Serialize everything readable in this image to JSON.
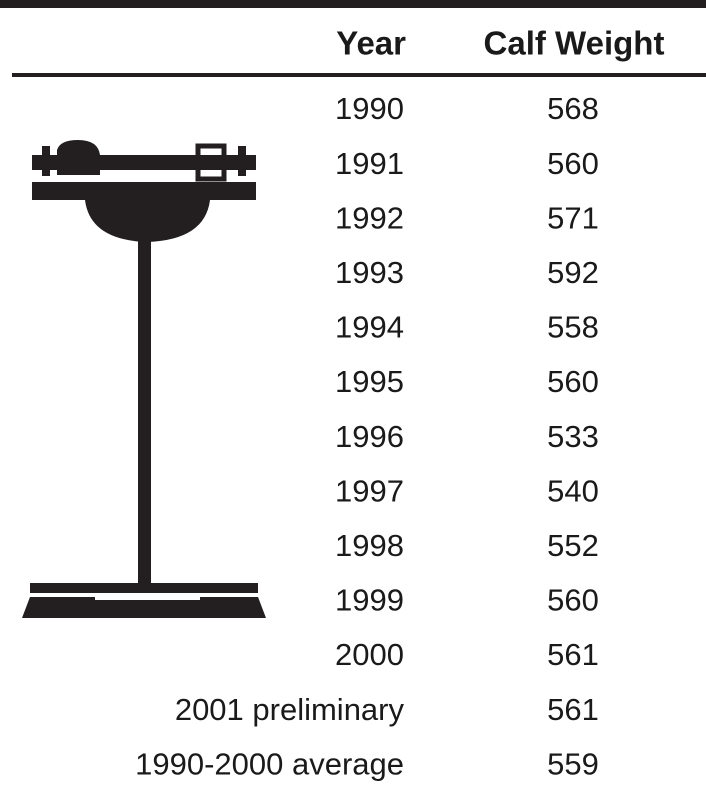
{
  "table": {
    "header": [
      "Year",
      "Calf Weight"
    ],
    "rows": [
      [
        "1990",
        568
      ],
      [
        "1991",
        560
      ],
      [
        "1992",
        571
      ],
      [
        "1993",
        592
      ],
      [
        "1994",
        558
      ],
      [
        "1995",
        560
      ],
      [
        "1996",
        533
      ],
      [
        "1997",
        540
      ],
      [
        "1998",
        552
      ],
      [
        "1999",
        560
      ],
      [
        "2000",
        561
      ],
      [
        "2001 preliminary",
        561
      ],
      [
        "1990-2000 average",
        559
      ]
    ]
  }
}
